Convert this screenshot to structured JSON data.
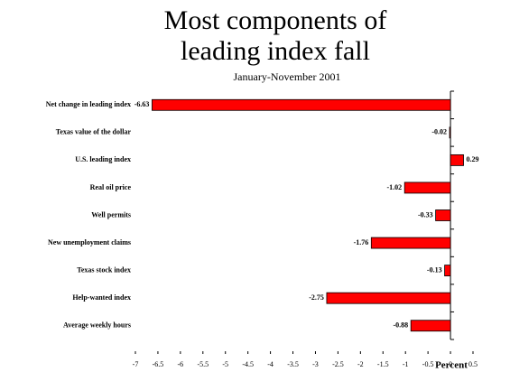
{
  "chart_data": {
    "type": "hbar",
    "title": "Most components of leading index fall",
    "subtitle": "January-November 2001",
    "x_label": "Percent",
    "categories": [
      "Net change in leading index",
      "Texas value of the dollar",
      "U.S. leading index",
      "Real oil price",
      "Well permits",
      "New unemployment claims",
      "Texas stock index",
      "Help-wanted index",
      "Average weekly hours"
    ],
    "values": [
      -6.63,
      -0.02,
      0.29,
      -1.02,
      -0.33,
      -1.76,
      -0.13,
      -2.75,
      -0.88
    ],
    "color": "#ff0000",
    "xlim": [
      -7,
      0.5
    ],
    "xticks": [
      -7,
      -6.5,
      -6,
      -5.5,
      -5,
      -4.5,
      -4,
      -3.5,
      -3,
      -2.5,
      -2,
      -1.5,
      -1,
      -0.5,
      0,
      0.5
    ]
  }
}
